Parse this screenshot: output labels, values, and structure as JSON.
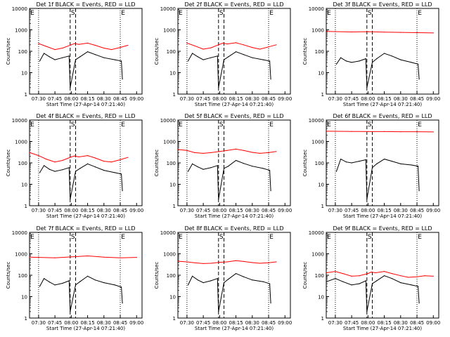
{
  "figure": {
    "ylabel": "Counts/sec",
    "xlabel": "Start Time (27-Apr-14 07:21:40)",
    "x_ticks": [
      "07:30",
      "07:45",
      "08:00",
      "08:15",
      "08:30",
      "08:45",
      "09:00"
    ],
    "y_ticks": [
      "1",
      "10",
      "100",
      "1000",
      "10000"
    ],
    "colors": {
      "events": "#000000",
      "lld": "#ff0000",
      "axes": "#000000",
      "background": "#ffffff"
    }
  },
  "chart_data": [
    {
      "type": "line",
      "title": "Det 1f BLACK = Events, RED = LLD",
      "markers": [
        "E",
        "S",
        "E"
      ],
      "xlabel": "Start Time (27-Apr-14 07:21:40)",
      "ylabel": "Counts/sec",
      "ylim": [
        1,
        10000
      ],
      "yscale": "log",
      "series": [
        {
          "x": [
            "07:30",
            "07:37",
            "07:45",
            "07:52",
            "08:00",
            "08:03",
            "08:07",
            "08:15",
            "08:22",
            "08:30",
            "08:37",
            "08:45",
            "08:52"
          ],
          "values": [
            230,
            170,
            120,
            140,
            200,
            230,
            210,
            240,
            190,
            140,
            120,
            150,
            190
          ]
        },
        {
          "x": [
            "07:31",
            "07:35",
            "07:40",
            "07:45",
            "07:52",
            "07:58",
            "07:59",
            "08:04",
            "08:08",
            "08:15",
            "08:22",
            "08:30",
            "08:40",
            "08:46",
            "08:47"
          ],
          "values": [
            35,
            80,
            55,
            40,
            50,
            60,
            2,
            40,
            55,
            95,
            70,
            50,
            40,
            35,
            5
          ]
        }
      ]
    },
    {
      "type": "line",
      "title": "Det 2f BLACK = Events, RED = LLD",
      "markers": [
        "E",
        "S",
        "E"
      ],
      "xlabel": "Start Time (27-Apr-14 07:21:40)",
      "ylabel": "Counts/sec",
      "ylim": [
        1,
        10000
      ],
      "yscale": "log",
      "series": [
        {
          "x": [
            "07:30",
            "07:37",
            "07:45",
            "07:52",
            "08:00",
            "08:03",
            "08:07",
            "08:15",
            "08:22",
            "08:30",
            "08:37",
            "08:45",
            "08:52"
          ],
          "values": [
            240,
            180,
            125,
            145,
            210,
            240,
            220,
            250,
            200,
            150,
            125,
            160,
            200
          ]
        },
        {
          "x": [
            "07:31",
            "07:35",
            "07:40",
            "07:45",
            "07:52",
            "07:58",
            "07:59",
            "08:04",
            "08:08",
            "08:15",
            "08:22",
            "08:30",
            "08:40",
            "08:46",
            "08:47"
          ],
          "values": [
            35,
            80,
            55,
            40,
            50,
            60,
            2,
            40,
            55,
            95,
            70,
            50,
            40,
            35,
            5
          ]
        }
      ]
    },
    {
      "type": "line",
      "title": "Det 3f BLACK = Events, RED = LLD",
      "markers": [
        "E",
        "S",
        "E"
      ],
      "xlabel": "Start Time (27-Apr-14 07:21:40)",
      "ylabel": "Counts/sec",
      "ylim": [
        1,
        10000
      ],
      "yscale": "log",
      "series": [
        {
          "x": [
            "07:22",
            "07:45",
            "08:00",
            "08:15",
            "08:30",
            "08:45",
            "09:00"
          ],
          "values": [
            850,
            800,
            820,
            780,
            760,
            740,
            720
          ]
        },
        {
          "x": [
            "07:31",
            "07:35",
            "07:40",
            "07:45",
            "07:52",
            "07:58",
            "07:59",
            "08:04",
            "08:08",
            "08:15",
            "08:22",
            "08:30",
            "08:40",
            "08:46",
            "08:47"
          ],
          "values": [
            25,
            50,
            35,
            30,
            35,
            45,
            2,
            30,
            45,
            80,
            60,
            40,
            30,
            25,
            5
          ]
        }
      ]
    },
    {
      "type": "line",
      "title": "Det 4f BLACK = Events, RED = LLD",
      "markers": [
        "E",
        "S",
        "E"
      ],
      "xlabel": "Start Time (27-Apr-14 07:21:40)",
      "ylabel": "Counts/sec",
      "ylim": [
        1,
        10000
      ],
      "yscale": "log",
      "series": [
        {
          "x": [
            "07:22",
            "07:30",
            "07:37",
            "07:45",
            "07:52",
            "08:00",
            "08:03",
            "08:07",
            "08:15",
            "08:22",
            "08:30",
            "08:37",
            "08:45",
            "08:52"
          ],
          "values": [
            300,
            220,
            150,
            110,
            130,
            190,
            210,
            190,
            220,
            170,
            120,
            110,
            140,
            180
          ]
        },
        {
          "x": [
            "07:31",
            "07:35",
            "07:40",
            "07:45",
            "07:52",
            "07:58",
            "07:59",
            "08:04",
            "08:08",
            "08:15",
            "08:22",
            "08:30",
            "08:40",
            "08:46",
            "08:47"
          ],
          "values": [
            35,
            75,
            50,
            40,
            48,
            60,
            2,
            40,
            55,
            90,
            65,
            45,
            35,
            30,
            5
          ]
        }
      ]
    },
    {
      "type": "line",
      "title": "Det 5f BLACK = Events, RED = LLD",
      "markers": [
        "E",
        "S",
        "E"
      ],
      "xlabel": "Start Time (27-Apr-14 07:21:40)",
      "ylabel": "Counts/sec",
      "ylim": [
        1,
        10000
      ],
      "yscale": "log",
      "series": [
        {
          "x": [
            "07:22",
            "07:30",
            "07:37",
            "07:45",
            "07:52",
            "08:00",
            "08:07",
            "08:15",
            "08:22",
            "08:30",
            "08:37",
            "08:45",
            "08:52"
          ],
          "values": [
            420,
            380,
            300,
            280,
            300,
            340,
            380,
            440,
            380,
            310,
            280,
            300,
            340
          ]
        },
        {
          "x": [
            "07:31",
            "07:35",
            "07:40",
            "07:45",
            "07:52",
            "07:58",
            "07:59",
            "08:04",
            "08:08",
            "08:15",
            "08:22",
            "08:30",
            "08:40",
            "08:46",
            "08:47"
          ],
          "values": [
            40,
            90,
            65,
            50,
            60,
            75,
            2,
            55,
            70,
            130,
            95,
            70,
            55,
            45,
            5
          ]
        }
      ]
    },
    {
      "type": "line",
      "title": "Det 6f BLACK = Events, RED = LLD",
      "markers": [
        "E",
        "S",
        "E"
      ],
      "xlabel": "Start Time (27-Apr-14 07:21:40)",
      "ylabel": "Counts/sec",
      "ylim": [
        1,
        10000
      ],
      "yscale": "log",
      "series": [
        {
          "x": [
            "07:22",
            "07:45",
            "08:00",
            "08:15",
            "08:30",
            "08:45",
            "09:00"
          ],
          "values": [
            3000,
            2950,
            2900,
            2900,
            2850,
            2850,
            2800
          ]
        },
        {
          "x": [
            "07:31",
            "07:35",
            "07:40",
            "07:45",
            "07:52",
            "07:58",
            "07:59",
            "08:04",
            "08:08",
            "08:15",
            "08:22",
            "08:30",
            "08:40",
            "08:46",
            "08:47"
          ],
          "values": [
            40,
            150,
            110,
            100,
            120,
            140,
            2,
            60,
            90,
            150,
            120,
            90,
            80,
            70,
            5
          ]
        }
      ]
    },
    {
      "type": "line",
      "title": "Det 7f BLACK = Events, RED = LLD",
      "markers": [
        "E",
        "S",
        "E"
      ],
      "xlabel": "Start Time (27-Apr-14 07:21:40)",
      "ylabel": "Counts/sec",
      "ylim": [
        1,
        10000
      ],
      "yscale": "log",
      "series": [
        {
          "x": [
            "07:22",
            "07:45",
            "08:00",
            "08:15",
            "08:30",
            "08:45",
            "09:00"
          ],
          "values": [
            700,
            650,
            720,
            800,
            700,
            650,
            680
          ]
        },
        {
          "x": [
            "07:31",
            "07:35",
            "07:40",
            "07:45",
            "07:52",
            "07:58",
            "07:59",
            "08:04",
            "08:08",
            "08:15",
            "08:22",
            "08:30",
            "08:40",
            "08:46",
            "08:47"
          ],
          "values": [
            30,
            70,
            48,
            35,
            42,
            55,
            2,
            35,
            50,
            90,
            60,
            45,
            35,
            28,
            5
          ]
        }
      ]
    },
    {
      "type": "line",
      "title": "Det 8f BLACK = Events, RED = LLD",
      "markers": [
        "E",
        "S",
        "E"
      ],
      "xlabel": "Start Time (27-Apr-14 07:21:40)",
      "ylabel": "Counts/sec",
      "ylim": [
        1,
        10000
      ],
      "yscale": "log",
      "series": [
        {
          "x": [
            "07:22",
            "07:30",
            "07:37",
            "07:45",
            "07:52",
            "08:00",
            "08:07",
            "08:15",
            "08:22",
            "08:30",
            "08:37",
            "08:45",
            "08:52"
          ],
          "values": [
            450,
            420,
            380,
            350,
            360,
            400,
            420,
            480,
            440,
            390,
            360,
            380,
            420
          ]
        },
        {
          "x": [
            "07:31",
            "07:35",
            "07:40",
            "07:45",
            "07:52",
            "07:58",
            "07:59",
            "08:04",
            "08:08",
            "08:15",
            "08:22",
            "08:30",
            "08:40",
            "08:46",
            "08:47"
          ],
          "values": [
            35,
            90,
            60,
            45,
            55,
            70,
            2,
            45,
            65,
            120,
            85,
            60,
            50,
            40,
            5
          ]
        }
      ]
    },
    {
      "type": "line",
      "title": "Det 9f BLACK = Events, RED = LLD",
      "markers": [
        "E",
        "S",
        "E"
      ],
      "xlabel": "Start Time (27-Apr-14 07:21:40)",
      "ylabel": "Counts/sec",
      "ylim": [
        1,
        10000
      ],
      "yscale": "log",
      "series": [
        {
          "x": [
            "07:22",
            "07:30",
            "07:37",
            "07:45",
            "07:52",
            "08:00",
            "08:03",
            "08:07",
            "08:15",
            "08:22",
            "08:30",
            "08:37",
            "08:45",
            "08:52",
            "09:00"
          ],
          "values": [
            130,
            150,
            120,
            90,
            95,
            120,
            140,
            130,
            150,
            120,
            95,
            80,
            85,
            95,
            90
          ]
        },
        {
          "x": [
            "07:22",
            "07:30",
            "07:37",
            "07:45",
            "07:52",
            "07:58",
            "07:59",
            "08:04",
            "08:08",
            "08:15",
            "08:22",
            "08:30",
            "08:40",
            "08:46",
            "08:47"
          ],
          "values": [
            50,
            70,
            50,
            35,
            40,
            55,
            2,
            40,
            55,
            95,
            70,
            45,
            35,
            30,
            5
          ]
        }
      ]
    }
  ]
}
